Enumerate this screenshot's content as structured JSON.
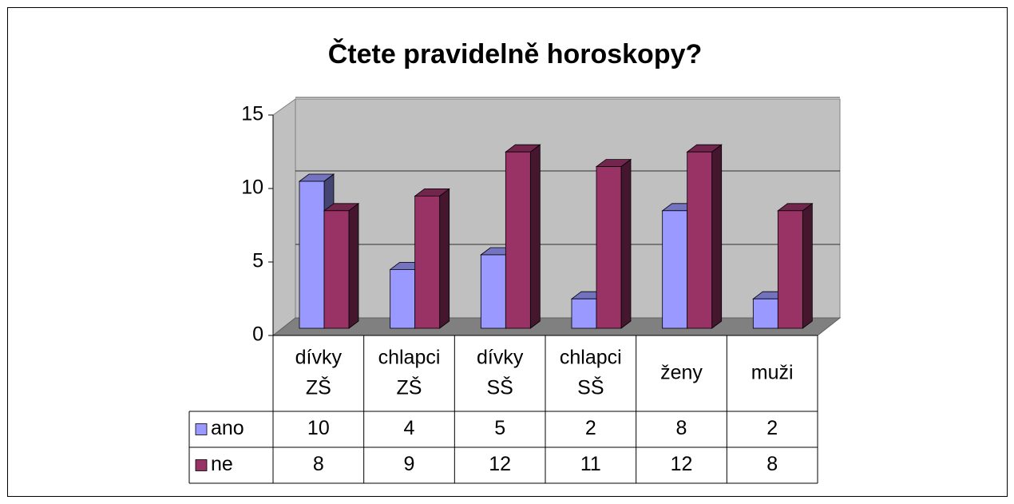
{
  "chart_data": {
    "type": "bar3d",
    "title": "Čtete pravidelně horoskopy?",
    "categories": [
      "dívky ZŠ",
      "chlapci ZŠ",
      "dívky SŠ",
      "chlapci SŠ",
      "ženy",
      "muži"
    ],
    "series": [
      {
        "name": "ano",
        "color": "#9999ff",
        "values": [
          10,
          4,
          5,
          2,
          8,
          2
        ]
      },
      {
        "name": "ne",
        "color": "#993366",
        "values": [
          8,
          9,
          12,
          11,
          12,
          8
        ]
      }
    ],
    "ylim": [
      0,
      15
    ],
    "yticks": [
      0,
      5,
      10,
      15
    ],
    "grid": true,
    "data_table": true
  }
}
